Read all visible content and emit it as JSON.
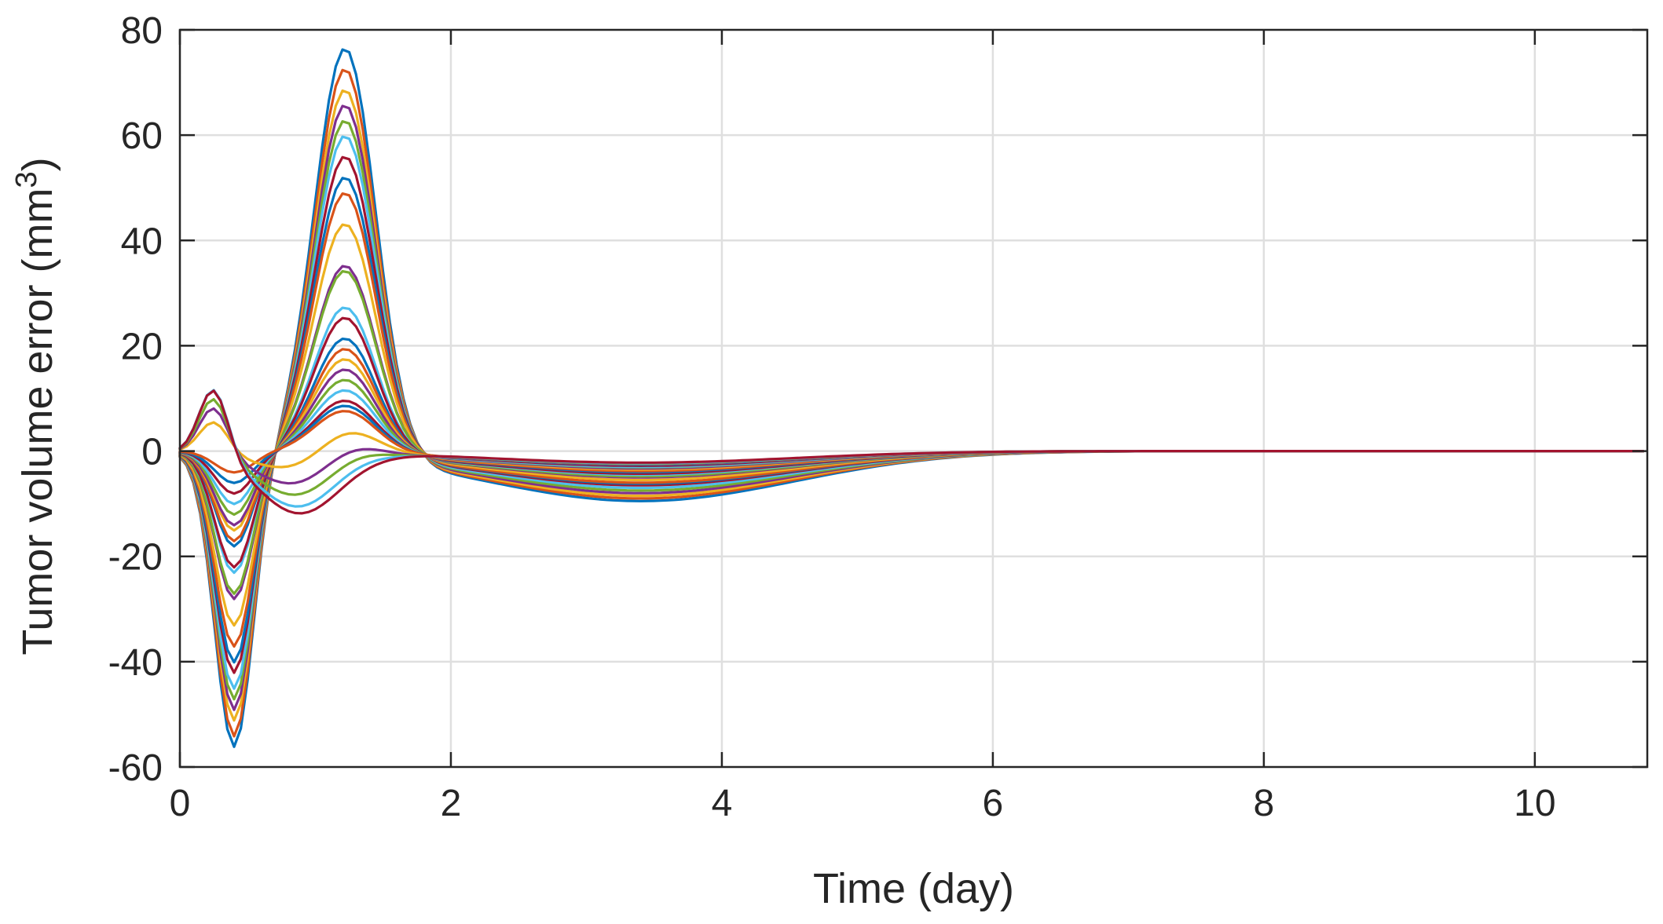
{
  "chart_data": {
    "type": "line",
    "title": "",
    "xlabel": "Time (day)",
    "ylabel": "Tumor volume error (mm",
    "ylabel_superscript": "3",
    "ylabel_suffix": ")",
    "xlim": [
      0,
      10.83
    ],
    "ylim": [
      -60,
      80
    ],
    "xticks": [
      0,
      2,
      4,
      6,
      8,
      10
    ],
    "xtick_labels": [
      "0",
      "2",
      "4",
      "6",
      "8",
      "10"
    ],
    "yticks": [
      -60,
      -40,
      -20,
      0,
      20,
      40,
      60,
      80
    ],
    "ytick_labels": [
      "-60",
      "-40",
      "-20",
      "0",
      "20",
      "40",
      "60",
      "80"
    ],
    "grid": true,
    "legend": "none",
    "colors": [
      "#0072BD",
      "#D95319",
      "#EDB120",
      "#7E2F8E",
      "#77AC30",
      "#4DBEEE",
      "#A2142F"
    ],
    "series_model": {
      "x_start": 0,
      "x_end": 10.83,
      "x_step": 0.05,
      "form": "y(t) = -a*exp(-((t-0.40)/0.20)^2) + b*exp(-((t-1.22)/0.32)^2) - c*exp(-((t-3.4)/1.6)^2) + d*exp(-((t-0.25)/0.15)^2) - e*exp(-((t-0.9)/0.45)^2)",
      "params": [
        {
          "a": 56,
          "b": 78,
          "c": 9.5,
          "d": 0,
          "e": 0
        },
        {
          "a": 54,
          "b": 74,
          "c": 9,
          "d": 0,
          "e": 0
        },
        {
          "a": 51,
          "b": 70,
          "c": 8.5,
          "d": 0,
          "e": 0
        },
        {
          "a": 49,
          "b": 67,
          "c": 8,
          "d": 0,
          "e": 0
        },
        {
          "a": 47,
          "b": 64,
          "c": 7.5,
          "d": 0,
          "e": 0
        },
        {
          "a": 45,
          "b": 61,
          "c": 7,
          "d": 0,
          "e": 0
        },
        {
          "a": 42,
          "b": 57,
          "c": 6.5,
          "d": 0,
          "e": 0
        },
        {
          "a": 40,
          "b": 53,
          "c": 6.2,
          "d": 0,
          "e": 0
        },
        {
          "a": 37,
          "b": 50,
          "c": 6,
          "d": 0,
          "e": 0
        },
        {
          "a": 33,
          "b": 44,
          "c": 5.5,
          "d": 0,
          "e": 0
        },
        {
          "a": 28,
          "b": 36,
          "c": 5,
          "d": 0,
          "e": 0
        },
        {
          "a": 27,
          "b": 35,
          "c": 4.8,
          "d": 0,
          "e": 0
        },
        {
          "a": 23,
          "b": 28,
          "c": 4.5,
          "d": 0,
          "e": 0
        },
        {
          "a": 22,
          "b": 26,
          "c": 4.3,
          "d": 0,
          "e": 0
        },
        {
          "a": 18,
          "b": 22,
          "c": 4,
          "d": 0,
          "e": 0
        },
        {
          "a": 17,
          "b": 20,
          "c": 3.8,
          "d": 0,
          "e": 0
        },
        {
          "a": 15,
          "b": 18,
          "c": 3.5,
          "d": 0,
          "e": 0
        },
        {
          "a": 14,
          "b": 16,
          "c": 3.3,
          "d": 0,
          "e": 0
        },
        {
          "a": 12,
          "b": 14,
          "c": 3.1,
          "d": 0,
          "e": 0
        },
        {
          "a": 10,
          "b": 12,
          "c": 3,
          "d": 0,
          "e": 0
        },
        {
          "a": 8,
          "b": 10,
          "c": 2.8,
          "d": 0,
          "e": 0
        },
        {
          "a": 6,
          "b": 9,
          "c": 2.6,
          "d": 0,
          "e": 0
        },
        {
          "a": 4,
          "b": 8,
          "c": 2.5,
          "d": 0,
          "e": 0
        },
        {
          "a": 0,
          "b": 6,
          "c": 2.5,
          "d": 6,
          "e": 4
        },
        {
          "a": 0,
          "b": 4,
          "c": 2.5,
          "d": 9,
          "e": 7
        },
        {
          "a": 0,
          "b": 3,
          "c": 2.4,
          "d": 11,
          "e": 9
        },
        {
          "a": 0,
          "b": 2,
          "c": 2.3,
          "d": 13,
          "e": 11
        },
        {
          "a": 0,
          "b": 1,
          "c": 2.2,
          "d": 13,
          "e": 12
        }
      ]
    }
  }
}
